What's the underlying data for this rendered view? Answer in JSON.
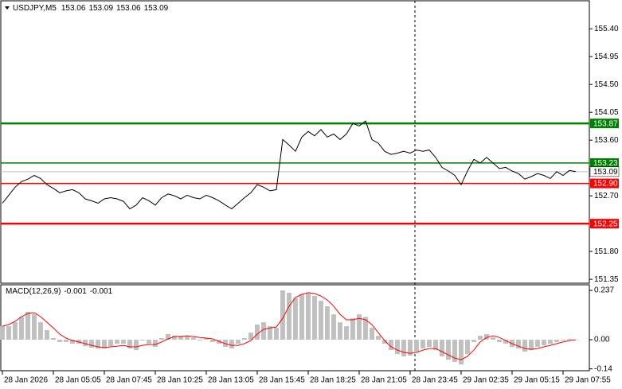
{
  "chart_data": [
    {
      "type": "line",
      "title": "USDJPY,M5",
      "ohlc": [
        153.06,
        153.09,
        153.06,
        153.09
      ],
      "x": [
        0,
        4,
        8,
        12,
        16,
        20,
        24,
        28,
        32,
        36,
        40,
        44,
        48,
        52,
        56,
        60,
        64,
        68,
        72,
        76,
        80,
        84,
        88,
        92,
        96,
        100,
        104,
        108,
        112,
        116,
        120,
        124,
        128,
        132,
        136,
        140,
        144,
        148,
        152,
        156,
        160,
        164,
        168,
        172,
        176,
        180,
        184,
        188,
        192,
        196,
        200,
        204,
        208,
        212,
        216,
        220,
        224,
        228,
        232,
        236,
        240,
        244,
        248,
        252,
        256,
        260,
        264,
        268,
        272,
        276,
        280,
        284,
        288,
        292,
        296,
        300,
        304,
        308,
        312,
        316,
        320,
        324,
        328,
        332,
        336,
        340,
        344,
        348,
        352,
        356,
        360
      ],
      "values": [
        152.58,
        152.71,
        152.84,
        152.93,
        152.97,
        153.03,
        152.98,
        152.88,
        152.82,
        152.75,
        152.78,
        152.8,
        152.75,
        152.65,
        152.62,
        152.58,
        152.65,
        152.67,
        152.65,
        152.61,
        152.49,
        152.55,
        152.67,
        152.62,
        152.55,
        152.67,
        152.73,
        152.7,
        152.65,
        152.71,
        152.67,
        152.65,
        152.71,
        152.67,
        152.62,
        152.55,
        152.49,
        152.58,
        152.67,
        152.75,
        152.88,
        152.84,
        152.78,
        152.8,
        153.61,
        153.52,
        153.42,
        153.65,
        153.74,
        153.67,
        153.77,
        153.65,
        153.7,
        153.61,
        153.7,
        153.87,
        153.83,
        153.91,
        153.61,
        153.55,
        153.42,
        153.37,
        153.39,
        153.42,
        153.39,
        153.44,
        153.42,
        153.44,
        153.32,
        153.16,
        153.1,
        153.03,
        152.88,
        153.1,
        153.29,
        153.23,
        153.32,
        153.23,
        153.14,
        153.16,
        153.1,
        153.06,
        152.97,
        153.01,
        153.06,
        153.03,
        152.98,
        153.09,
        153.03,
        153.11,
        153.09
      ],
      "color": "#000000",
      "xlim": [
        0,
        368
      ],
      "ylim": [
        151.3,
        155.84
      ],
      "yticks": [
        {
          "value": 155.4,
          "label": "155.40"
        },
        154.95,
        {
          "value": 154.5,
          "label": "154.50"
        },
        154.05,
        {
          "value": 153.6,
          "label": "153.60"
        },
        {
          "value": 152.7,
          "label": "152.70"
        },
        {
          "value": 151.8,
          "label": "151.80"
        },
        151.35
      ],
      "levels": [
        {
          "value": 153.87,
          "color": "#008000"
        },
        {
          "value": 153.23,
          "color": "#008000"
        },
        {
          "value": {
            "value": 152.9,
            "label": "152.90"
          },
          "color": "#ff0000"
        },
        {
          "value": 152.25,
          "color": "#ff0000"
        }
      ],
      "last_price": 153.09
    },
    {
      "type": "macd",
      "title": "MACD(12,26,9)",
      "macd_value": -0.001,
      "signal_value": -0.001,
      "histogram": {
        "color": "#c0c0c0",
        "values": [
          0.065,
          0.065,
          0.084,
          0.11,
          0.134,
          0.122,
          0.084,
          0.046,
          0.008,
          -0.011,
          -0.011,
          -0.019,
          -0.019,
          -0.031,
          -0.038,
          -0.042,
          -0.042,
          -0.031,
          -0.019,
          -0.019,
          -0.042,
          -0.05,
          -0.004,
          -0.019,
          -0.034,
          0.008,
          0.027,
          0.019,
          0.019,
          0.019,
          0.011,
          -0.004,
          0.008,
          -0.011,
          -0.019,
          -0.034,
          -0.042,
          -0.019,
          0.008,
          0.034,
          0.073,
          0.084,
          0.065,
          0.057,
          0.237,
          0.226,
          0.199,
          0.218,
          0.226,
          0.21,
          0.187,
          0.161,
          0.122,
          0.084,
          0.065,
          0.103,
          0.122,
          0.11,
          0.057,
          0.019,
          -0.019,
          -0.05,
          -0.069,
          -0.08,
          -0.076,
          -0.057,
          -0.042,
          -0.034,
          -0.05,
          -0.08,
          -0.096,
          -0.107,
          -0.119,
          -0.069,
          -0.011,
          0.019,
          0.027,
          0.011,
          -0.011,
          -0.019,
          -0.034,
          -0.042,
          -0.057,
          -0.05,
          -0.034,
          -0.027,
          -0.019,
          -0.011,
          -0.004,
          0.004,
          -0.001
        ]
      },
      "signal": {
        "color": "#ff0000",
        "values": [
          0.065,
          0.073,
          0.088,
          0.111,
          0.126,
          0.13,
          0.111,
          0.084,
          0.057,
          0.027,
          0.008,
          -0.004,
          -0.011,
          -0.019,
          -0.027,
          -0.034,
          -0.038,
          -0.034,
          -0.031,
          -0.027,
          -0.034,
          -0.034,
          -0.027,
          -0.023,
          -0.023,
          -0.011,
          0.004,
          0.015,
          0.015,
          0.019,
          0.015,
          0.011,
          0.008,
          0.004,
          -0.008,
          -0.019,
          -0.027,
          -0.027,
          -0.019,
          -0.004,
          0.027,
          0.05,
          0.057,
          0.061,
          0.103,
          0.161,
          0.203,
          0.218,
          0.226,
          0.222,
          0.21,
          0.191,
          0.161,
          0.122,
          0.096,
          0.096,
          0.103,
          0.096,
          0.073,
          0.034,
          -0.004,
          -0.034,
          -0.05,
          -0.061,
          -0.065,
          -0.061,
          -0.05,
          -0.042,
          -0.042,
          -0.057,
          -0.073,
          -0.088,
          -0.096,
          -0.08,
          -0.05,
          -0.011,
          0.011,
          0.019,
          0.011,
          -0.004,
          -0.019,
          -0.031,
          -0.042,
          -0.046,
          -0.042,
          -0.034,
          -0.027,
          -0.019,
          -0.011,
          -0.004,
          -0.001
        ]
      },
      "xlim": [
        0,
        368
      ],
      "ylim": [
        -0.145,
        0.264
      ],
      "yticks": [
        0.237,
        {
          "value": 0,
          "label": "0.00"
        },
        -0.14
      ],
      "xticks": [
        {
          "value": 0,
          "label": "28 Jan 2026"
        },
        {
          "value": 32,
          "label": "28 Jan 05:05"
        },
        {
          "value": 64,
          "label": "28 Jan 07:45"
        },
        {
          "value": 96,
          "label": "28 Jan 10:25"
        },
        {
          "value": 128,
          "label": "28 Jan 13:05"
        },
        {
          "value": 160,
          "label": "28 Jan 15:45"
        },
        {
          "value": 192,
          "label": "28 Jan 18:25"
        },
        {
          "value": 224,
          "label": "28 Jan 21:05"
        },
        {
          "value": 256,
          "label": "28 Jan 23:45"
        },
        {
          "value": 288,
          "label": "29 Jan 02:35"
        },
        {
          "value": 320,
          "label": "29 Jan 05:15"
        },
        {
          "value": 352,
          "label": "29 Jan 07:55"
        }
      ]
    }
  ]
}
